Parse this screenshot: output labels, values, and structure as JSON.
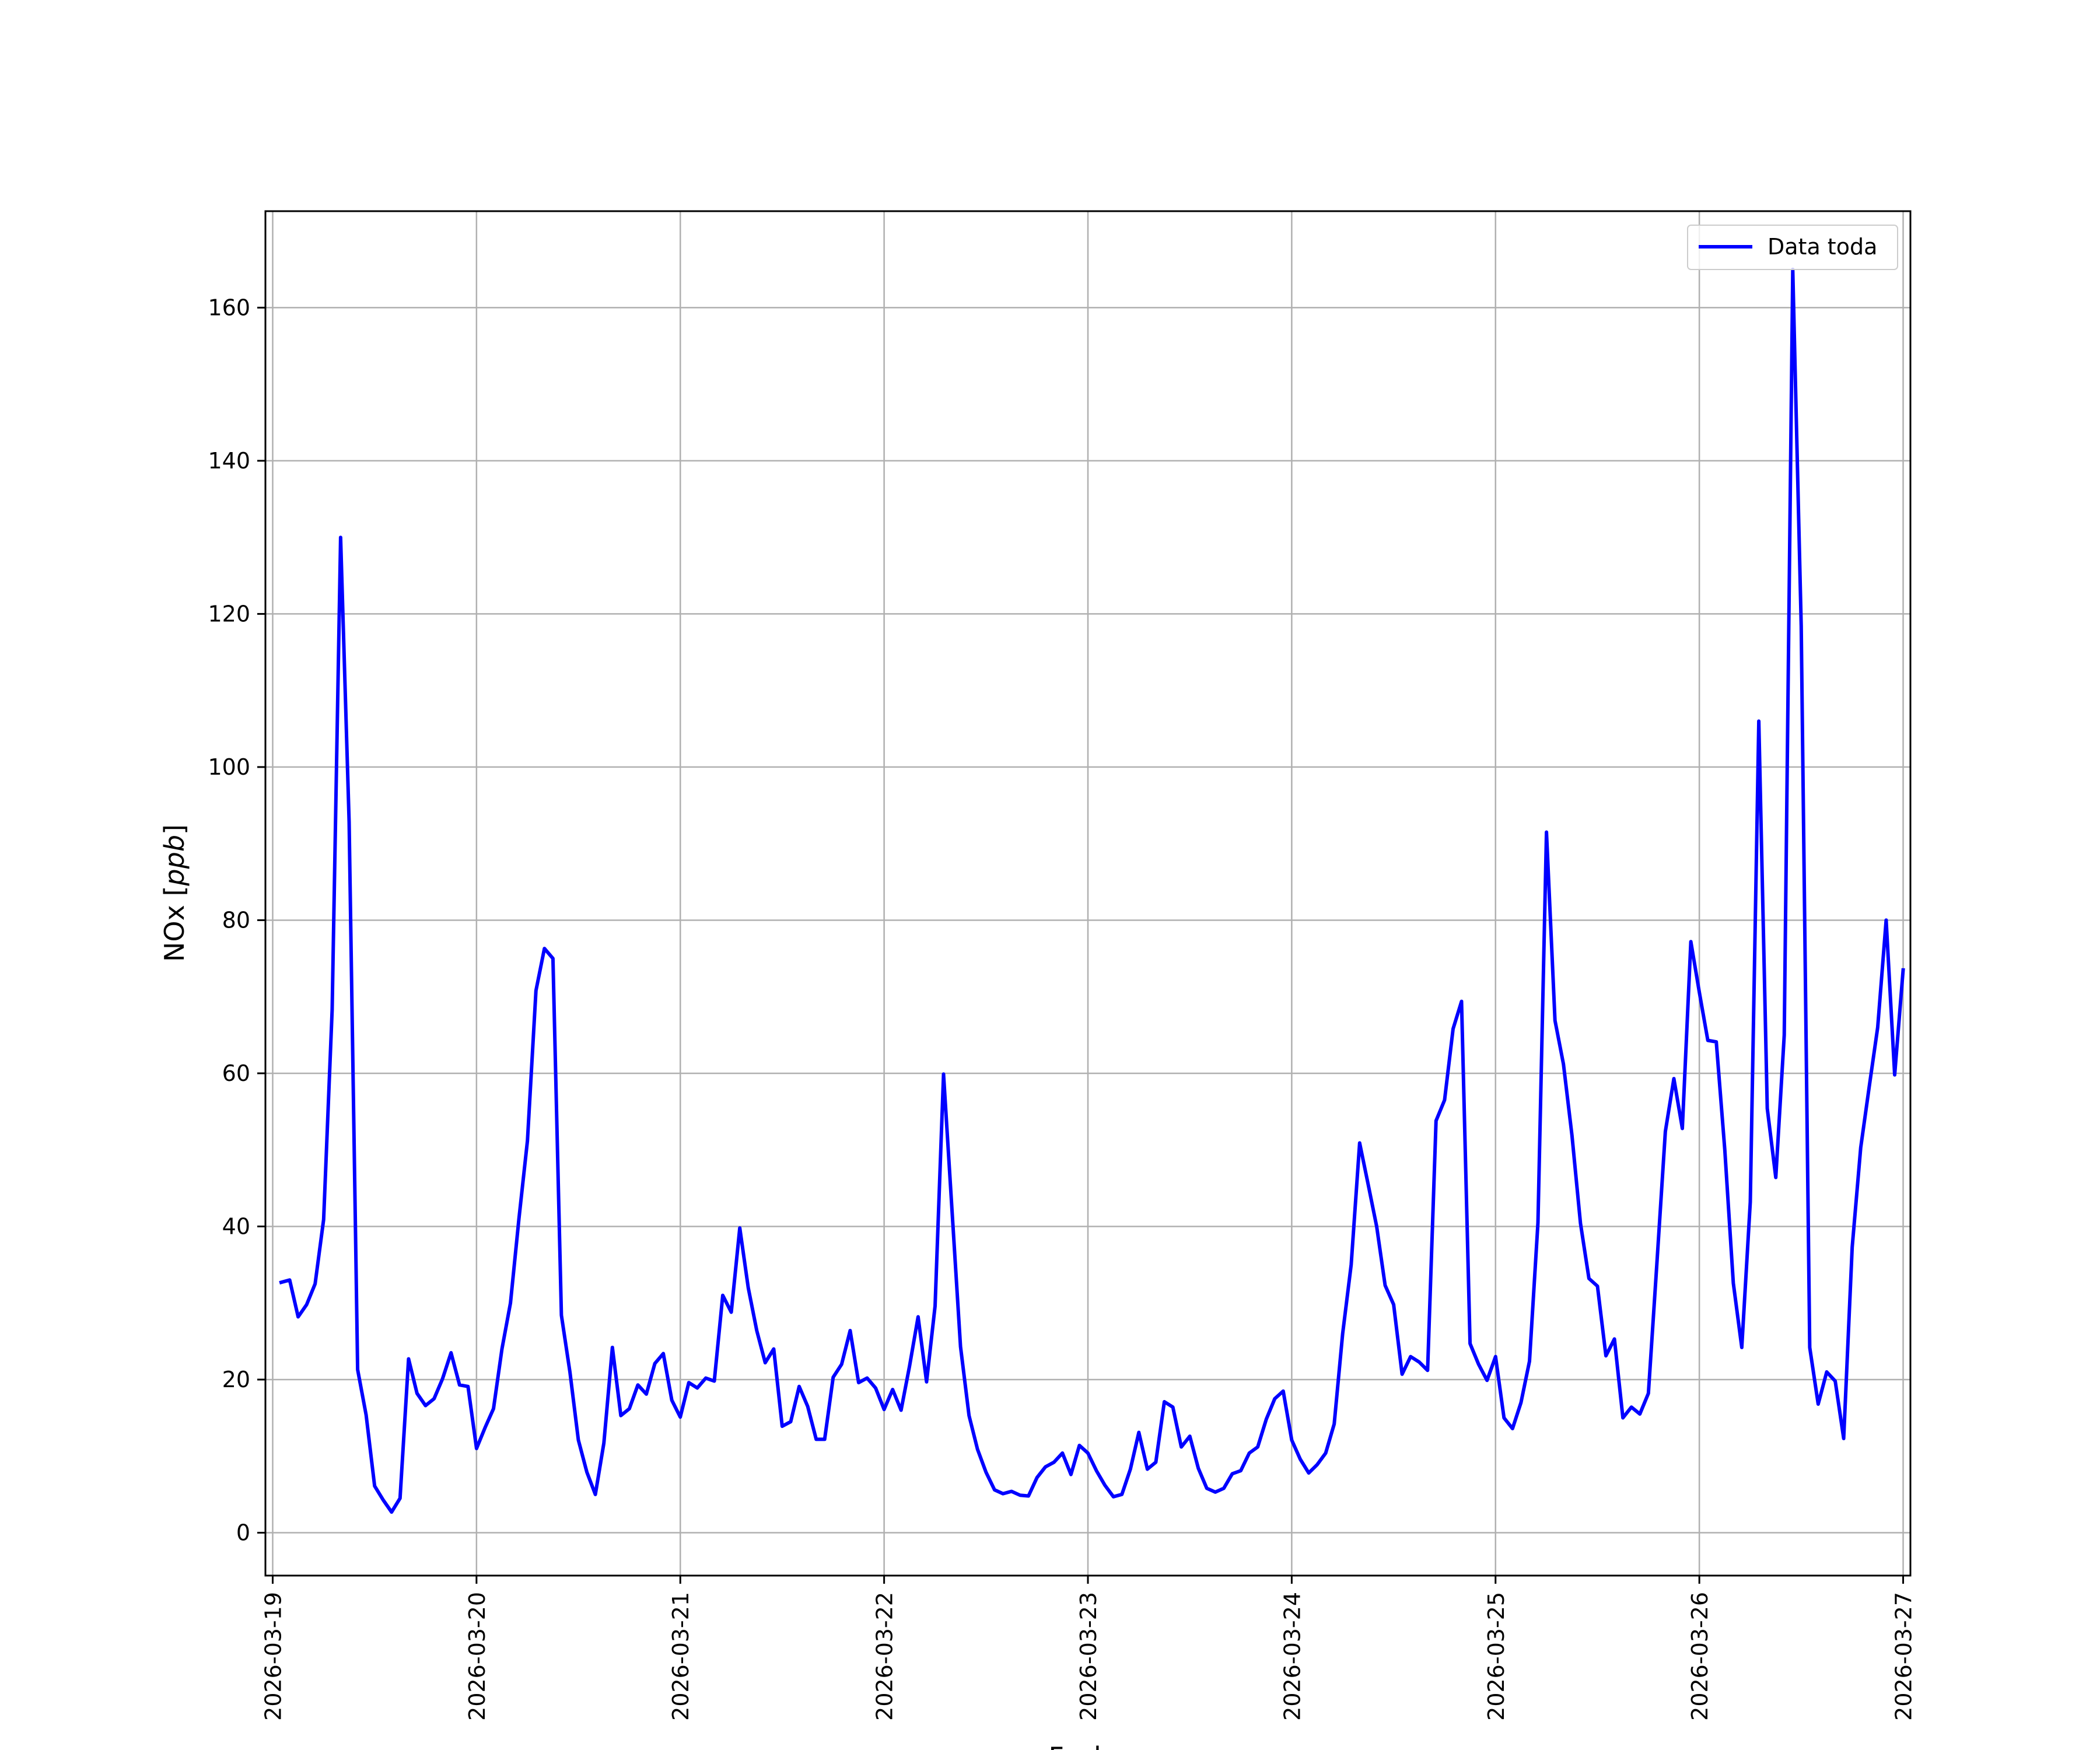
{
  "chart_data": {
    "type": "line",
    "xlabel": "Fecha",
    "ylabel": {
      "prefix": "NOx ",
      "unit": "[ppb]",
      "unit_italic": "ppb"
    },
    "x_ticks": [
      "2026-03-19",
      "2026-03-20",
      "2026-03-21",
      "2026-03-22",
      "2026-03-23",
      "2026-03-24",
      "2026-03-25",
      "2026-03-26",
      "2026-03-27"
    ],
    "y_ticks": [
      0,
      20,
      40,
      60,
      80,
      100,
      120,
      140,
      160
    ],
    "xlim": [
      -0.0357,
      8.0357
    ],
    "ylim": [
      -5.6,
      172.6
    ],
    "grid": true,
    "legend": {
      "position": "top-right",
      "entries": [
        "Data toda"
      ]
    },
    "series": [
      {
        "name": "Data toda",
        "color": "#0000ff",
        "x_unit": "days since 2026-03-19 00:00",
        "points": [
          [
            0.0417,
            32.7
          ],
          [
            0.0833,
            33.0
          ],
          [
            0.125,
            28.2
          ],
          [
            0.1667,
            29.8
          ],
          [
            0.2083,
            32.5
          ],
          [
            0.25,
            40.9
          ],
          [
            0.2917,
            68.3
          ],
          [
            0.3333,
            130.0
          ],
          [
            0.375,
            92.8
          ],
          [
            0.4167,
            21.3
          ],
          [
            0.4583,
            15.4
          ],
          [
            0.5,
            6.1
          ],
          [
            0.5417,
            4.3
          ],
          [
            0.5833,
            2.7
          ],
          [
            0.625,
            4.5
          ],
          [
            0.6667,
            22.7
          ],
          [
            0.7083,
            18.2
          ],
          [
            0.75,
            16.6
          ],
          [
            0.7917,
            17.5
          ],
          [
            0.8333,
            20.1
          ],
          [
            0.875,
            23.5
          ],
          [
            0.9167,
            19.3
          ],
          [
            0.9583,
            19.1
          ],
          [
            1.0,
            11.0
          ],
          [
            1.0417,
            13.7
          ],
          [
            1.0833,
            16.2
          ],
          [
            1.125,
            24.0
          ],
          [
            1.1667,
            30.0
          ],
          [
            1.2083,
            41.0
          ],
          [
            1.25,
            51.2
          ],
          [
            1.2917,
            70.8
          ],
          [
            1.3333,
            76.3
          ],
          [
            1.375,
            75.0
          ],
          [
            1.4167,
            28.4
          ],
          [
            1.4583,
            21.0
          ],
          [
            1.5,
            12.1
          ],
          [
            1.5417,
            7.9
          ],
          [
            1.5833,
            5.0
          ],
          [
            1.625,
            11.7
          ],
          [
            1.6667,
            24.2
          ],
          [
            1.7083,
            15.3
          ],
          [
            1.75,
            16.2
          ],
          [
            1.7917,
            19.3
          ],
          [
            1.8333,
            18.1
          ],
          [
            1.875,
            22.1
          ],
          [
            1.9167,
            23.4
          ],
          [
            1.9583,
            17.3
          ],
          [
            2.0,
            15.1
          ],
          [
            2.0417,
            19.6
          ],
          [
            2.0833,
            18.9
          ],
          [
            2.125,
            20.2
          ],
          [
            2.1667,
            19.8
          ],
          [
            2.2083,
            31.0
          ],
          [
            2.25,
            28.8
          ],
          [
            2.2917,
            39.8
          ],
          [
            2.3333,
            32.0
          ],
          [
            2.375,
            26.4
          ],
          [
            2.4167,
            22.2
          ],
          [
            2.4583,
            24.0
          ],
          [
            2.5,
            13.9
          ],
          [
            2.5417,
            14.5
          ],
          [
            2.5833,
            19.1
          ],
          [
            2.625,
            16.5
          ],
          [
            2.6667,
            12.2
          ],
          [
            2.7083,
            12.2
          ],
          [
            2.75,
            20.3
          ],
          [
            2.7917,
            22.0
          ],
          [
            2.8333,
            26.4
          ],
          [
            2.875,
            19.6
          ],
          [
            2.9167,
            20.2
          ],
          [
            2.9583,
            18.9
          ],
          [
            3.0,
            16.1
          ],
          [
            3.0417,
            18.7
          ],
          [
            3.0833,
            16.0
          ],
          [
            3.125,
            21.8
          ],
          [
            3.1667,
            28.2
          ],
          [
            3.2083,
            19.7
          ],
          [
            3.25,
            29.6
          ],
          [
            3.2917,
            59.9
          ],
          [
            3.3333,
            42.0
          ],
          [
            3.375,
            24.3
          ],
          [
            3.4167,
            15.3
          ],
          [
            3.4583,
            10.9
          ],
          [
            3.5,
            7.9
          ],
          [
            3.5417,
            5.6
          ],
          [
            3.5833,
            5.1
          ],
          [
            3.625,
            5.4
          ],
          [
            3.6667,
            4.9
          ],
          [
            3.7083,
            4.8
          ],
          [
            3.75,
            7.2
          ],
          [
            3.7917,
            8.6
          ],
          [
            3.8333,
            9.2
          ],
          [
            3.875,
            10.4
          ],
          [
            3.9167,
            7.6
          ],
          [
            3.9583,
            11.4
          ],
          [
            4.0,
            10.4
          ],
          [
            4.0417,
            8.1
          ],
          [
            4.0833,
            6.2
          ],
          [
            4.125,
            4.7
          ],
          [
            4.1667,
            5.0
          ],
          [
            4.2083,
            8.3
          ],
          [
            4.25,
            13.1
          ],
          [
            4.2917,
            8.3
          ],
          [
            4.3333,
            9.2
          ],
          [
            4.375,
            17.1
          ],
          [
            4.4167,
            16.4
          ],
          [
            4.4583,
            11.2
          ],
          [
            4.5,
            12.6
          ],
          [
            4.5417,
            8.4
          ],
          [
            4.5833,
            5.8
          ],
          [
            4.625,
            5.3
          ],
          [
            4.6667,
            5.8
          ],
          [
            4.7083,
            7.7
          ],
          [
            4.75,
            8.1
          ],
          [
            4.7917,
            10.4
          ],
          [
            4.8333,
            11.2
          ],
          [
            4.875,
            14.8
          ],
          [
            4.9167,
            17.5
          ],
          [
            4.9583,
            18.5
          ],
          [
            5.0,
            12.1
          ],
          [
            5.0417,
            9.6
          ],
          [
            5.0833,
            7.8
          ],
          [
            5.125,
            8.9
          ],
          [
            5.1667,
            10.4
          ],
          [
            5.2083,
            14.2
          ],
          [
            5.25,
            26.0
          ],
          [
            5.2917,
            35.0
          ],
          [
            5.3333,
            50.9
          ],
          [
            5.375,
            45.5
          ],
          [
            5.4167,
            40.0
          ],
          [
            5.4583,
            32.3
          ],
          [
            5.5,
            29.8
          ],
          [
            5.5417,
            20.7
          ],
          [
            5.5833,
            23.0
          ],
          [
            5.625,
            22.3
          ],
          [
            5.6667,
            21.2
          ],
          [
            5.7083,
            53.8
          ],
          [
            5.75,
            56.5
          ],
          [
            5.7917,
            65.8
          ],
          [
            5.8333,
            69.4
          ],
          [
            5.875,
            24.7
          ],
          [
            5.9167,
            22.0
          ],
          [
            5.9583,
            19.9
          ],
          [
            6.0,
            23.0
          ],
          [
            6.0417,
            15.0
          ],
          [
            6.0833,
            13.6
          ],
          [
            6.125,
            17.0
          ],
          [
            6.1667,
            22.4
          ],
          [
            6.2083,
            40.5
          ],
          [
            6.25,
            91.5
          ],
          [
            6.2917,
            66.9
          ],
          [
            6.3333,
            61.2
          ],
          [
            6.375,
            51.9
          ],
          [
            6.4167,
            40.4
          ],
          [
            6.4583,
            33.2
          ],
          [
            6.5,
            32.2
          ],
          [
            6.5417,
            23.1
          ],
          [
            6.5833,
            25.3
          ],
          [
            6.625,
            15.0
          ],
          [
            6.6667,
            16.4
          ],
          [
            6.7083,
            15.5
          ],
          [
            6.75,
            18.2
          ],
          [
            6.7917,
            35.2
          ],
          [
            6.8333,
            52.4
          ],
          [
            6.875,
            59.3
          ],
          [
            6.9167,
            52.8
          ],
          [
            6.9583,
            77.2
          ],
          [
            7.0,
            70.6
          ],
          [
            7.0417,
            64.3
          ],
          [
            7.0833,
            64.1
          ],
          [
            7.125,
            50.0
          ],
          [
            7.1667,
            32.6
          ],
          [
            7.2083,
            24.2
          ],
          [
            7.25,
            43.2
          ],
          [
            7.2917,
            106.0
          ],
          [
            7.3333,
            55.4
          ],
          [
            7.375,
            46.4
          ],
          [
            7.4167,
            65.0
          ],
          [
            7.4583,
            165.0
          ],
          [
            7.5,
            118.4
          ],
          [
            7.5417,
            24.2
          ],
          [
            7.5833,
            16.8
          ],
          [
            7.625,
            21.0
          ],
          [
            7.6667,
            19.8
          ],
          [
            7.7083,
            12.3
          ],
          [
            7.75,
            37.3
          ],
          [
            7.7917,
            50.3
          ],
          [
            7.8333,
            58.2
          ],
          [
            7.875,
            66.0
          ],
          [
            7.9167,
            80.0
          ],
          [
            7.9583,
            59.8
          ],
          [
            8.0,
            73.5
          ]
        ]
      }
    ]
  }
}
